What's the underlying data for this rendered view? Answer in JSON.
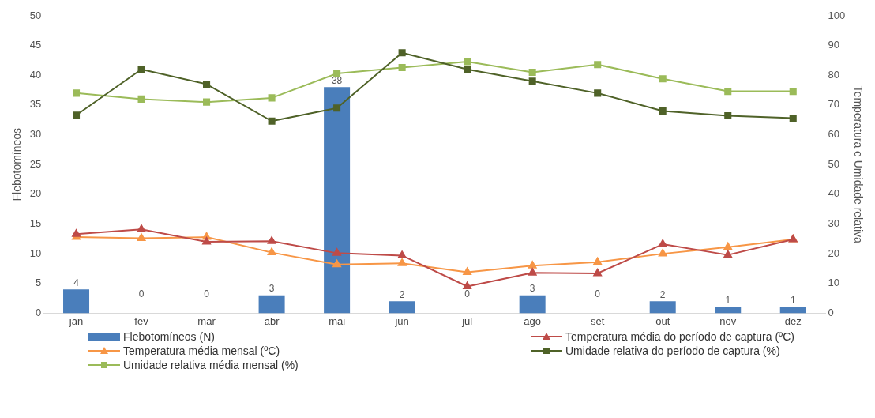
{
  "chart_data": {
    "type": "bar",
    "categories": [
      "jan",
      "fev",
      "mar",
      "abr",
      "mai",
      "jun",
      "jul",
      "ago",
      "set",
      "out",
      "nov",
      "dez"
    ],
    "ylabel": "Flebotomíneos",
    "y2label": "Temperatura e Umidade relativa",
    "ylim": [
      0,
      50
    ],
    "yticks": [
      0,
      5,
      10,
      15,
      20,
      25,
      30,
      35,
      40,
      45,
      50
    ],
    "y2lim": [
      0,
      100
    ],
    "y2ticks": [
      0,
      10,
      20,
      30,
      40,
      50,
      60,
      70,
      80,
      90,
      100
    ],
    "grid": false,
    "legend": "bottom",
    "series": [
      {
        "name": "Flebotomíneos (N)",
        "color": "#4a7ebb",
        "data_labels": true,
        "values": [
          4,
          0,
          0,
          3,
          38,
          2,
          0,
          3,
          0,
          2,
          1,
          1
        ]
      },
      {
        "name": "Temperatura média do período de captura (ºC)",
        "type": "line",
        "axis": "y2",
        "marker": "triangle",
        "color": "#be4b48",
        "values": [
          26.6,
          28.2,
          24,
          24.2,
          20.2,
          19.4,
          9,
          13.6,
          13.4,
          23.2,
          19.6,
          24.8
        ]
      },
      {
        "name": "Temperatura média mensal (ºC)",
        "type": "line",
        "axis": "y2",
        "marker": "triangle",
        "color": "#f79646",
        "values": [
          25.6,
          25.2,
          25.6,
          20.4,
          16.4,
          16.8,
          13.8,
          16,
          17.2,
          20,
          22.2,
          24.8
        ]
      },
      {
        "name": "Umidade relativa do período de captura (%)",
        "type": "line",
        "axis": "y2",
        "marker": "square",
        "color": "#4f6228",
        "values": [
          66.6,
          82,
          77,
          64.6,
          69,
          87.6,
          82,
          78,
          74,
          68,
          66.4,
          65.6
        ]
      },
      {
        "name": "Umidade relativa média mensal (%)",
        "type": "line",
        "axis": "y2",
        "marker": "square",
        "color": "#9bbb59",
        "values": [
          74,
          72,
          71,
          72.4,
          80.6,
          82.6,
          84.6,
          81,
          83.6,
          78.8,
          74.6,
          74.6
        ]
      }
    ]
  }
}
